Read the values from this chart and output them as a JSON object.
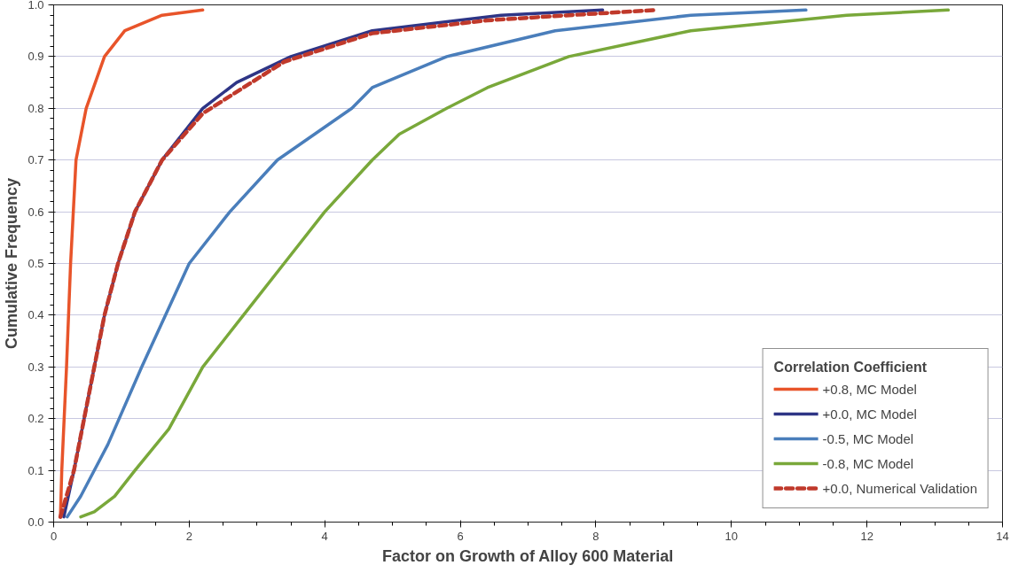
{
  "chart_data": {
    "type": "line",
    "xlabel": "Factor on Growth of Alloy 600 Material",
    "ylabel": "Cumulative Frequency",
    "legend_title": "Correlation Coefficient",
    "legend": "bottom right",
    "grid": "y",
    "xlim": [
      0,
      14
    ],
    "xticks": [
      0,
      2,
      4,
      6,
      8,
      10,
      12,
      14
    ],
    "ylim": [
      0,
      1
    ],
    "yticks": [
      {
        "value": 0,
        "label": "0.0"
      },
      0.1,
      0.2,
      0.3,
      0.4,
      0.5,
      0.6,
      0.7,
      0.8,
      0.9,
      {
        "value": 1,
        "label": "1.0"
      }
    ],
    "series": [
      {
        "name": "+0.8, MC Model",
        "color": "#e8542a",
        "line_style": "solid",
        "x": [
          0.1,
          0.12,
          0.19,
          0.25,
          0.33,
          0.48,
          0.75,
          1.05,
          1.6,
          2.2
        ],
        "values": [
          0.01,
          0.1,
          0.3,
          0.5,
          0.7,
          0.8,
          0.9,
          0.95,
          0.98,
          0.99
        ]
      },
      {
        "name": "+0.0, MC Model",
        "color": "#2e3586",
        "line_style": "solid",
        "x": [
          0.15,
          0.3,
          0.45,
          0.6,
          0.75,
          0.95,
          1.2,
          1.6,
          2.2,
          2.7,
          3.5,
          4.7,
          6.6,
          8.1
        ],
        "values": [
          0.01,
          0.1,
          0.2,
          0.3,
          0.4,
          0.5,
          0.6,
          0.7,
          0.8,
          0.85,
          0.9,
          0.95,
          0.98,
          0.99
        ]
      },
      {
        "name": "-0.5, MC Model",
        "color": "#4a7ebb",
        "line_style": "solid",
        "x": [
          0.2,
          0.4,
          0.8,
          1.3,
          2.0,
          2.6,
          3.3,
          4.4,
          4.7,
          5.8,
          7.4,
          9.4,
          11.1
        ],
        "values": [
          0.01,
          0.05,
          0.15,
          0.3,
          0.5,
          0.6,
          0.7,
          0.8,
          0.84,
          0.9,
          0.95,
          0.98,
          0.99
        ]
      },
      {
        "name": "-0.8, MC Model",
        "color": "#79a83a",
        "line_style": "solid",
        "x": [
          0.4,
          0.6,
          0.9,
          1.2,
          1.7,
          2.2,
          2.8,
          3.4,
          4.0,
          4.7,
          5.1,
          5.8,
          6.4,
          7.6,
          9.4,
          11.7,
          13.2
        ],
        "values": [
          0.01,
          0.02,
          0.05,
          0.1,
          0.18,
          0.3,
          0.4,
          0.5,
          0.6,
          0.7,
          0.75,
          0.8,
          0.84,
          0.9,
          0.95,
          0.98,
          0.99
        ]
      },
      {
        "name": "+0.0, Numerical Validation",
        "color": "#c0392b",
        "line_style": "dashed",
        "x": [
          0.1,
          0.3,
          0.45,
          0.6,
          0.75,
          0.95,
          1.2,
          1.6,
          2.2,
          3.4,
          4.7,
          6.4,
          7.6,
          8.9
        ],
        "values": [
          0.01,
          0.1,
          0.2,
          0.3,
          0.4,
          0.5,
          0.6,
          0.7,
          0.79,
          0.89,
          0.945,
          0.97,
          0.98,
          0.99
        ]
      }
    ]
  }
}
